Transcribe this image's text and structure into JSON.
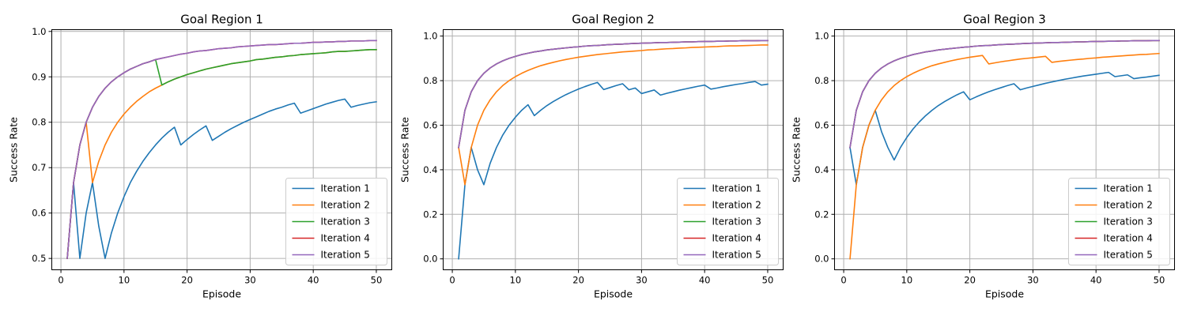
{
  "chart_data": [
    {
      "type": "line",
      "title": "Goal Region 1",
      "xlabel": "Episode",
      "ylabel": "Success Rate",
      "xlim": [
        -1.45,
        52.45
      ],
      "ylim": [
        0.475,
        1.004
      ],
      "xticks": [
        0,
        10,
        20,
        30,
        40,
        50
      ],
      "yticks": [
        0.5,
        0.6,
        0.7,
        0.8,
        0.9,
        1.0
      ],
      "ytick_labels": [
        "0.5",
        "0.6",
        "0.7",
        "0.8",
        "0.9",
        "1.0"
      ],
      "grid": true,
      "legend_position": "lower-right",
      "x": [
        1,
        2,
        3,
        4,
        5,
        6,
        7,
        8,
        9,
        10,
        11,
        12,
        13,
        14,
        15,
        16,
        17,
        18,
        19,
        20,
        21,
        22,
        23,
        24,
        25,
        26,
        27,
        28,
        29,
        30,
        31,
        32,
        33,
        34,
        35,
        36,
        37,
        38,
        39,
        40,
        41,
        42,
        43,
        44,
        45,
        46,
        47,
        48,
        49,
        50
      ],
      "series": [
        {
          "name": "Iteration 1",
          "color": "#1f77b4",
          "values": [
            0.5,
            0.667,
            0.5,
            0.6,
            0.667,
            0.571,
            0.5,
            0.556,
            0.6,
            0.636,
            0.667,
            0.692,
            0.714,
            0.733,
            0.75,
            0.765,
            0.778,
            0.789,
            0.75,
            0.762,
            0.773,
            0.783,
            0.792,
            0.76,
            0.769,
            0.778,
            0.786,
            0.793,
            0.8,
            0.806,
            0.812,
            0.818,
            0.824,
            0.829,
            0.833,
            0.838,
            0.842,
            0.82,
            0.825,
            0.83,
            0.835,
            0.84,
            0.844,
            0.848,
            0.851,
            0.833,
            0.837,
            0.84,
            0.843,
            0.845
          ]
        },
        {
          "name": "Iteration 2",
          "color": "#ff7f0e",
          "values": [
            0.5,
            0.667,
            0.75,
            0.8,
            0.667,
            0.714,
            0.75,
            0.778,
            0.8,
            0.818,
            0.833,
            0.846,
            0.857,
            0.867,
            0.875,
            0.882,
            0.889,
            0.895,
            0.9,
            0.905,
            0.909,
            0.913,
            0.917,
            0.92,
            0.923,
            0.926,
            0.929,
            0.931,
            0.933,
            0.935,
            0.938,
            0.939,
            0.941,
            0.943,
            0.944,
            0.946,
            0.947,
            0.949,
            0.95,
            0.951,
            0.952,
            0.953,
            0.955,
            0.956,
            0.956,
            0.957,
            0.958,
            0.959,
            0.96,
            0.96
          ]
        },
        {
          "name": "Iteration 3",
          "color": "#2ca02c",
          "values": [
            0.5,
            0.667,
            0.75,
            0.8,
            0.833,
            0.857,
            0.875,
            0.889,
            0.9,
            0.909,
            0.917,
            0.923,
            0.929,
            0.933,
            0.938,
            0.882,
            0.889,
            0.895,
            0.9,
            0.905,
            0.909,
            0.913,
            0.917,
            0.92,
            0.923,
            0.926,
            0.929,
            0.931,
            0.933,
            0.935,
            0.938,
            0.939,
            0.941,
            0.943,
            0.944,
            0.946,
            0.947,
            0.949,
            0.95,
            0.951,
            0.952,
            0.953,
            0.955,
            0.956,
            0.956,
            0.957,
            0.958,
            0.959,
            0.96,
            0.96
          ]
        },
        {
          "name": "Iteration 4",
          "color": "#d62728",
          "values": [
            0.5,
            0.667,
            0.75,
            0.8,
            0.833,
            0.857,
            0.875,
            0.889,
            0.9,
            0.909,
            0.917,
            0.923,
            0.929,
            0.933,
            0.938,
            0.941,
            0.944,
            0.947,
            0.95,
            0.952,
            0.955,
            0.957,
            0.958,
            0.96,
            0.962,
            0.963,
            0.964,
            0.966,
            0.967,
            0.968,
            0.969,
            0.97,
            0.971,
            0.971,
            0.972,
            0.973,
            0.974,
            0.974,
            0.975,
            0.976,
            0.976,
            0.977,
            0.977,
            0.978,
            0.978,
            0.979,
            0.979,
            0.979,
            0.98,
            0.98
          ]
        },
        {
          "name": "Iteration 5",
          "color": "#9467bd",
          "values": [
            0.5,
            0.667,
            0.75,
            0.8,
            0.833,
            0.857,
            0.875,
            0.889,
            0.9,
            0.909,
            0.917,
            0.923,
            0.929,
            0.933,
            0.938,
            0.941,
            0.944,
            0.947,
            0.95,
            0.952,
            0.955,
            0.957,
            0.958,
            0.96,
            0.962,
            0.963,
            0.964,
            0.966,
            0.967,
            0.968,
            0.969,
            0.97,
            0.971,
            0.971,
            0.972,
            0.973,
            0.974,
            0.974,
            0.975,
            0.976,
            0.976,
            0.977,
            0.977,
            0.978,
            0.978,
            0.979,
            0.979,
            0.979,
            0.98,
            0.98
          ]
        }
      ]
    },
    {
      "type": "line",
      "title": "Goal Region 2",
      "xlabel": "Episode",
      "ylabel": "Success Rate",
      "xlim": [
        -1.45,
        52.45
      ],
      "ylim": [
        -0.049,
        1.029
      ],
      "xticks": [
        0,
        10,
        20,
        30,
        40,
        50
      ],
      "yticks": [
        0.0,
        0.2,
        0.4,
        0.6,
        0.8,
        1.0
      ],
      "ytick_labels": [
        "0.0",
        "0.2",
        "0.4",
        "0.6",
        "0.8",
        "1.0"
      ],
      "grid": true,
      "legend_position": "lower-right",
      "x": [
        1,
        2,
        3,
        4,
        5,
        6,
        7,
        8,
        9,
        10,
        11,
        12,
        13,
        14,
        15,
        16,
        17,
        18,
        19,
        20,
        21,
        22,
        23,
        24,
        25,
        26,
        27,
        28,
        29,
        30,
        31,
        32,
        33,
        34,
        35,
        36,
        37,
        38,
        39,
        40,
        41,
        42,
        43,
        44,
        45,
        46,
        47,
        48,
        49,
        50
      ],
      "series": [
        {
          "name": "Iteration 1",
          "color": "#1f77b4",
          "values": [
            0.0,
            0.333,
            0.5,
            0.4,
            0.333,
            0.429,
            0.5,
            0.556,
            0.6,
            0.636,
            0.667,
            0.692,
            0.643,
            0.667,
            0.688,
            0.706,
            0.722,
            0.737,
            0.75,
            0.762,
            0.773,
            0.783,
            0.792,
            0.76,
            0.769,
            0.778,
            0.786,
            0.759,
            0.767,
            0.742,
            0.75,
            0.758,
            0.735,
            0.743,
            0.75,
            0.757,
            0.763,
            0.769,
            0.775,
            0.78,
            0.762,
            0.767,
            0.773,
            0.778,
            0.783,
            0.787,
            0.792,
            0.796,
            0.78,
            0.784
          ]
        },
        {
          "name": "Iteration 2",
          "color": "#ff7f0e",
          "values": [
            0.5,
            0.333,
            0.5,
            0.6,
            0.667,
            0.714,
            0.75,
            0.778,
            0.8,
            0.818,
            0.833,
            0.846,
            0.857,
            0.867,
            0.875,
            0.882,
            0.889,
            0.895,
            0.9,
            0.905,
            0.909,
            0.913,
            0.917,
            0.92,
            0.923,
            0.926,
            0.929,
            0.931,
            0.933,
            0.935,
            0.938,
            0.939,
            0.941,
            0.943,
            0.944,
            0.946,
            0.947,
            0.949,
            0.95,
            0.951,
            0.952,
            0.953,
            0.955,
            0.956,
            0.956,
            0.957,
            0.958,
            0.959,
            0.96,
            0.96
          ]
        },
        {
          "name": "Iteration 3",
          "color": "#2ca02c",
          "values": [
            0.5,
            0.667,
            0.75,
            0.8,
            0.833,
            0.857,
            0.875,
            0.889,
            0.9,
            0.909,
            0.917,
            0.923,
            0.929,
            0.933,
            0.938,
            0.941,
            0.944,
            0.947,
            0.95,
            0.952,
            0.955,
            0.957,
            0.958,
            0.96,
            0.962,
            0.963,
            0.964,
            0.966,
            0.967,
            0.968,
            0.969,
            0.97,
            0.971,
            0.971,
            0.972,
            0.973,
            0.974,
            0.974,
            0.975,
            0.976,
            0.976,
            0.977,
            0.977,
            0.978,
            0.978,
            0.979,
            0.979,
            0.979,
            0.98,
            0.98
          ]
        },
        {
          "name": "Iteration 4",
          "color": "#d62728",
          "values": [
            0.5,
            0.667,
            0.75,
            0.8,
            0.833,
            0.857,
            0.875,
            0.889,
            0.9,
            0.909,
            0.917,
            0.923,
            0.929,
            0.933,
            0.938,
            0.941,
            0.944,
            0.947,
            0.95,
            0.952,
            0.955,
            0.957,
            0.958,
            0.96,
            0.962,
            0.963,
            0.964,
            0.966,
            0.967,
            0.968,
            0.969,
            0.97,
            0.971,
            0.971,
            0.972,
            0.973,
            0.974,
            0.974,
            0.975,
            0.976,
            0.976,
            0.977,
            0.977,
            0.978,
            0.978,
            0.979,
            0.979,
            0.979,
            0.98,
            0.98
          ]
        },
        {
          "name": "Iteration 5",
          "color": "#9467bd",
          "values": [
            0.5,
            0.667,
            0.75,
            0.8,
            0.833,
            0.857,
            0.875,
            0.889,
            0.9,
            0.909,
            0.917,
            0.923,
            0.929,
            0.933,
            0.938,
            0.941,
            0.944,
            0.947,
            0.95,
            0.952,
            0.955,
            0.957,
            0.958,
            0.96,
            0.962,
            0.963,
            0.964,
            0.966,
            0.967,
            0.968,
            0.969,
            0.97,
            0.971,
            0.971,
            0.972,
            0.973,
            0.974,
            0.974,
            0.975,
            0.976,
            0.976,
            0.977,
            0.977,
            0.978,
            0.978,
            0.979,
            0.979,
            0.979,
            0.98,
            0.98
          ]
        }
      ]
    },
    {
      "type": "line",
      "title": "Goal Region 3",
      "xlabel": "Episode",
      "ylabel": "Success Rate",
      "xlim": [
        -1.45,
        52.45
      ],
      "ylim": [
        -0.049,
        1.029
      ],
      "xticks": [
        0,
        10,
        20,
        30,
        40,
        50
      ],
      "yticks": [
        0.0,
        0.2,
        0.4,
        0.6,
        0.8,
        1.0
      ],
      "ytick_labels": [
        "0.0",
        "0.2",
        "0.4",
        "0.6",
        "0.8",
        "1.0"
      ],
      "grid": true,
      "legend_position": "lower-right",
      "x": [
        1,
        2,
        3,
        4,
        5,
        6,
        7,
        8,
        9,
        10,
        11,
        12,
        13,
        14,
        15,
        16,
        17,
        18,
        19,
        20,
        21,
        22,
        23,
        24,
        25,
        26,
        27,
        28,
        29,
        30,
        31,
        32,
        33,
        34,
        35,
        36,
        37,
        38,
        39,
        40,
        41,
        42,
        43,
        44,
        45,
        46,
        47,
        48,
        49,
        50
      ],
      "series": [
        {
          "name": "Iteration 1",
          "color": "#1f77b4",
          "values": [
            0.5,
            0.333,
            0.5,
            0.6,
            0.667,
            0.571,
            0.5,
            0.444,
            0.5,
            0.545,
            0.583,
            0.615,
            0.643,
            0.667,
            0.688,
            0.706,
            0.722,
            0.737,
            0.75,
            0.714,
            0.727,
            0.739,
            0.75,
            0.76,
            0.769,
            0.778,
            0.786,
            0.759,
            0.767,
            0.774,
            0.781,
            0.788,
            0.794,
            0.8,
            0.806,
            0.811,
            0.816,
            0.821,
            0.825,
            0.829,
            0.833,
            0.837,
            0.818,
            0.822,
            0.826,
            0.809,
            0.813,
            0.816,
            0.82,
            0.824
          ]
        },
        {
          "name": "Iteration 2",
          "color": "#ff7f0e",
          "values": [
            0.0,
            0.333,
            0.5,
            0.6,
            0.667,
            0.714,
            0.75,
            0.778,
            0.8,
            0.818,
            0.833,
            0.846,
            0.857,
            0.867,
            0.875,
            0.882,
            0.889,
            0.895,
            0.9,
            0.905,
            0.909,
            0.913,
            0.875,
            0.88,
            0.885,
            0.889,
            0.893,
            0.897,
            0.9,
            0.903,
            0.906,
            0.909,
            0.882,
            0.886,
            0.889,
            0.892,
            0.895,
            0.897,
            0.9,
            0.902,
            0.905,
            0.907,
            0.909,
            0.911,
            0.913,
            0.915,
            0.917,
            0.918,
            0.92,
            0.922
          ]
        },
        {
          "name": "Iteration 3",
          "color": "#2ca02c",
          "values": [
            0.5,
            0.667,
            0.75,
            0.8,
            0.833,
            0.857,
            0.875,
            0.889,
            0.9,
            0.909,
            0.917,
            0.923,
            0.929,
            0.933,
            0.938,
            0.941,
            0.944,
            0.947,
            0.95,
            0.952,
            0.955,
            0.957,
            0.958,
            0.96,
            0.962,
            0.963,
            0.964,
            0.966,
            0.967,
            0.968,
            0.969,
            0.97,
            0.971,
            0.971,
            0.972,
            0.973,
            0.974,
            0.974,
            0.975,
            0.976,
            0.976,
            0.977,
            0.977,
            0.978,
            0.978,
            0.979,
            0.979,
            0.979,
            0.98,
            0.98
          ]
        },
        {
          "name": "Iteration 4",
          "color": "#d62728",
          "values": [
            0.5,
            0.667,
            0.75,
            0.8,
            0.833,
            0.857,
            0.875,
            0.889,
            0.9,
            0.909,
            0.917,
            0.923,
            0.929,
            0.933,
            0.938,
            0.941,
            0.944,
            0.947,
            0.95,
            0.952,
            0.955,
            0.957,
            0.958,
            0.96,
            0.962,
            0.963,
            0.964,
            0.966,
            0.967,
            0.968,
            0.969,
            0.97,
            0.971,
            0.971,
            0.972,
            0.973,
            0.974,
            0.974,
            0.975,
            0.976,
            0.976,
            0.977,
            0.977,
            0.978,
            0.978,
            0.979,
            0.979,
            0.979,
            0.98,
            0.98
          ]
        },
        {
          "name": "Iteration 5",
          "color": "#9467bd",
          "values": [
            0.5,
            0.667,
            0.75,
            0.8,
            0.833,
            0.857,
            0.875,
            0.889,
            0.9,
            0.909,
            0.917,
            0.923,
            0.929,
            0.933,
            0.938,
            0.941,
            0.944,
            0.947,
            0.95,
            0.952,
            0.955,
            0.957,
            0.958,
            0.96,
            0.962,
            0.963,
            0.964,
            0.966,
            0.967,
            0.968,
            0.969,
            0.97,
            0.971,
            0.971,
            0.972,
            0.973,
            0.974,
            0.974,
            0.975,
            0.976,
            0.976,
            0.977,
            0.977,
            0.978,
            0.978,
            0.979,
            0.979,
            0.979,
            0.98,
            0.98
          ]
        }
      ]
    }
  ]
}
